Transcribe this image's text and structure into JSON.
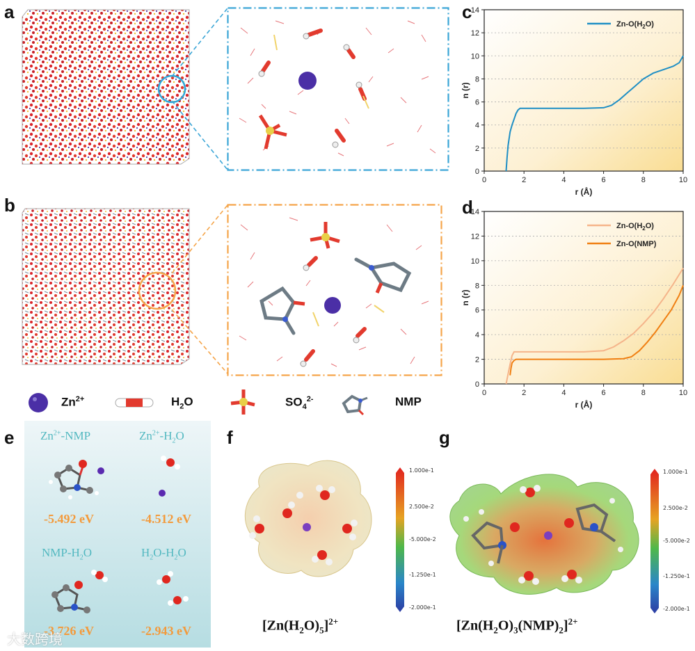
{
  "panel_labels": {
    "a": "a",
    "b": "b",
    "c": "c",
    "d": "d",
    "e": "e",
    "f": "f",
    "g": "g"
  },
  "legend": {
    "zn": "Zn",
    "zn_sup": "2+",
    "h2o": "H",
    "h2o_sub": "2",
    "h2o_tail": "O",
    "so4": "SO",
    "so4_sub": "4",
    "so4_sup": "2-",
    "nmp": "NMP"
  },
  "colors": {
    "water_line": "#1f8fc5",
    "nmp_light": "#f5b48a",
    "nmp_dark": "#f07f12",
    "dash_blue": "#3aa5d6",
    "dash_orange": "#f5a54a",
    "energy": "#f39a3b",
    "title_teal": "#52b8c0"
  },
  "chart_data": [
    {
      "type": "line",
      "title": "",
      "xlabel": "r (Å)",
      "ylabel": "n (r)",
      "xlim": [
        0,
        10
      ],
      "ylim": [
        0,
        14
      ],
      "xticks": [
        0,
        2,
        4,
        6,
        8,
        10
      ],
      "yticks": [
        0,
        2,
        4,
        6,
        8,
        10,
        12,
        14
      ],
      "legend_position": "top-right",
      "series": [
        {
          "name": "Zn-O(H2O)",
          "color": "#1f8fc5",
          "x": [
            1.1,
            1.15,
            1.2,
            1.3,
            1.4,
            1.5,
            1.6,
            1.7,
            1.8,
            2.0,
            3.0,
            4.0,
            5.0,
            6.0,
            6.4,
            6.8,
            7.2,
            7.6,
            8.0,
            8.5,
            9.0,
            9.5,
            9.8,
            10.0
          ],
          "y": [
            0,
            1.2,
            2.2,
            3.4,
            4.0,
            4.5,
            5.0,
            5.3,
            5.45,
            5.45,
            5.45,
            5.45,
            5.45,
            5.5,
            5.7,
            6.2,
            6.8,
            7.4,
            8.0,
            8.5,
            8.8,
            9.1,
            9.4,
            10.0
          ]
        }
      ]
    },
    {
      "type": "line",
      "title": "",
      "xlabel": "r (Å)",
      "ylabel": "n (r)",
      "xlim": [
        0,
        10
      ],
      "ylim": [
        0,
        14
      ],
      "xticks": [
        0,
        2,
        4,
        6,
        8,
        10
      ],
      "yticks": [
        0,
        2,
        4,
        6,
        8,
        10,
        12,
        14
      ],
      "legend_position": "top-right",
      "series": [
        {
          "name": "Zn-O(H2O)",
          "color": "#f5b48a",
          "x": [
            1.1,
            1.2,
            1.3,
            1.4,
            1.5,
            2.0,
            3.0,
            4.0,
            5.0,
            6.0,
            6.5,
            7.0,
            7.5,
            8.0,
            8.5,
            9.0,
            9.5,
            10.0
          ],
          "y": [
            0,
            0.8,
            1.6,
            2.3,
            2.6,
            2.6,
            2.6,
            2.6,
            2.6,
            2.7,
            3.0,
            3.5,
            4.1,
            4.9,
            5.8,
            6.9,
            8.1,
            9.4
          ]
        },
        {
          "name": "Zn-O(NMP)",
          "color": "#f07f12",
          "x": [
            1.3,
            1.35,
            1.4,
            1.5,
            1.6,
            2.0,
            3.0,
            4.0,
            5.0,
            6.0,
            7.0,
            7.4,
            7.8,
            8.2,
            8.6,
            9.0,
            9.4,
            9.8,
            10.0
          ],
          "y": [
            0.7,
            1.3,
            1.7,
            1.9,
            2.0,
            2.0,
            2.0,
            2.0,
            2.0,
            2.0,
            2.05,
            2.2,
            2.7,
            3.4,
            4.2,
            5.1,
            6.0,
            7.2,
            8.0
          ]
        }
      ]
    }
  ],
  "panel_e": {
    "tl_title": "Zn",
    "tl_title_sup": "2+",
    "tl_title_tail": "-NMP",
    "tr_title": "Zn",
    "tr_title_sup": "2+",
    "tr_title_mid": "-H",
    "tr_title_sub": "2",
    "tr_title_tail": "O",
    "bl_title": "NMP-H",
    "bl_title_sub": "2",
    "bl_title_tail": "O",
    "br_title": "H",
    "br_title_sub1": "2",
    "br_title_mid": "O-H",
    "br_title_sub2": "2",
    "br_title_tail": "O",
    "val_tl": "-5.492 eV",
    "val_tr": "-4.512 eV",
    "val_bl": "-3.726 eV",
    "val_br": "-2.943 eV"
  },
  "panel_f": {
    "cb_labels": [
      "1.000e-1",
      "2.500e-2",
      "-5.000e-2",
      "-1.250e-1",
      "-2.000e-1"
    ],
    "caption_pre": "[Zn(H",
    "caption_sub": "2",
    "caption_mid": "O)",
    "caption_sub2": "5",
    "caption_post": "]",
    "caption_sup": "2+"
  },
  "panel_g": {
    "cb_labels": [
      "1.000e-1",
      "2.500e-2",
      "-5.000e-2",
      "-1.250e-1",
      "-2.000e-1"
    ],
    "caption_pre": "[Zn(H",
    "caption_sub": "2",
    "caption_mid": "O)",
    "caption_sub2": "3",
    "caption_mid2": "(NMP)",
    "caption_sub3": "2",
    "caption_post": "]",
    "caption_sup": "2+"
  },
  "watermark": "大数跨境"
}
